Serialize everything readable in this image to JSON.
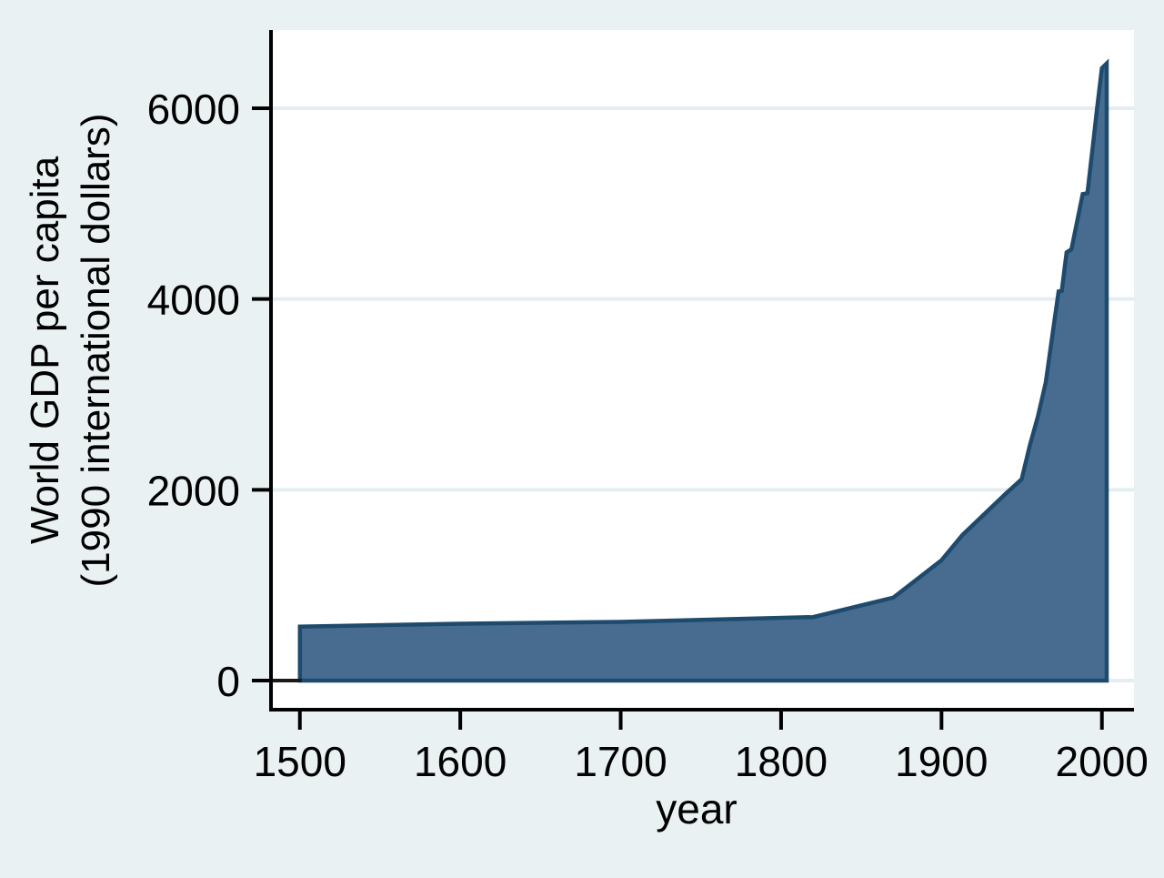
{
  "figure": {
    "background_color": "#EAF1F3",
    "plot_background_color": "#FFFFFF",
    "grid_color": "#E4EEF1",
    "axis_color": "#000000",
    "area_fill_color": "#476C90",
    "area_line_color": "#1E4A6E"
  },
  "chart_data": {
    "type": "area",
    "title": "",
    "xlabel": "year",
    "ylabel_line1": "World GDP per capita",
    "ylabel_line2": "(1990 international dollars)",
    "legend": "none",
    "grid": "horizontal",
    "xlim": [
      1482,
      2020
    ],
    "ylim": [
      -305,
      6820
    ],
    "x_ticks": [
      1500,
      1600,
      1700,
      1800,
      1900,
      2000
    ],
    "y_ticks": [
      0,
      2000,
      4000,
      6000
    ],
    "baseline": 0,
    "series": [
      {
        "name": "World GDP per capita (1990 international dollars)",
        "points": [
          [
            1500,
            566
          ],
          [
            1600,
            596
          ],
          [
            1700,
            615
          ],
          [
            1820,
            666
          ],
          [
            1870,
            870
          ],
          [
            1900,
            1261
          ],
          [
            1913,
            1525
          ],
          [
            1940,
            1958
          ],
          [
            1950,
            2111
          ],
          [
            1955,
            2459
          ],
          [
            1960,
            2764
          ],
          [
            1965,
            3126
          ],
          [
            1970,
            3725
          ],
          [
            1973,
            4080
          ],
          [
            1975,
            4085
          ],
          [
            1978,
            4490
          ],
          [
            1981,
            4520
          ],
          [
            1988,
            5100
          ],
          [
            1991,
            5110
          ],
          [
            1995,
            5700
          ],
          [
            1997,
            6000
          ],
          [
            2000,
            6420
          ],
          [
            2003,
            6470
          ]
        ]
      }
    ]
  }
}
